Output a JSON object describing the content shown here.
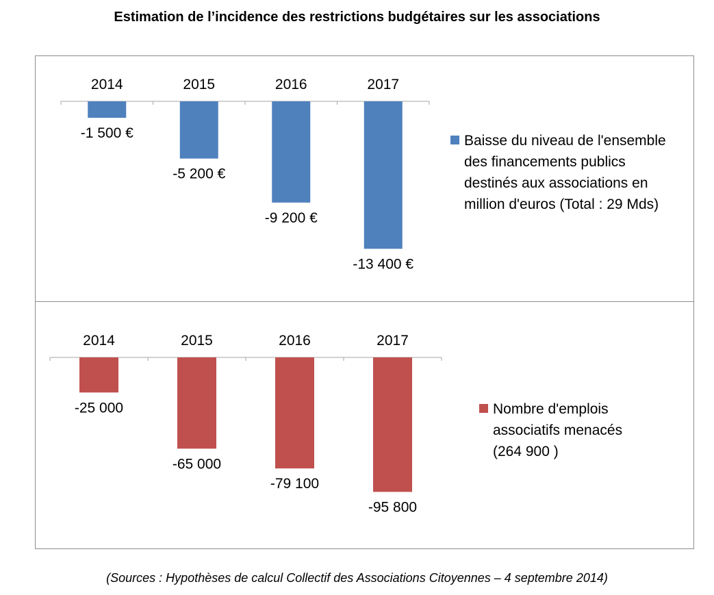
{
  "title": "Estimation de l’incidence  des restrictions budgétaires sur les associations",
  "source": "(Sources : Hypothèses de calcul Collectif des Associations Citoyennes – 4 septembre 2014)",
  "colors": {
    "series1": "#4f81bd",
    "series2": "#c0504d",
    "axis": "#a6a6a6"
  },
  "chart_data": [
    {
      "type": "bar",
      "categories": [
        "2014",
        "2015",
        "2016",
        "2017"
      ],
      "series": [
        {
          "name": "Baisse du niveau de l'ensemble des financements publics destinés aux associations en million d'euros (Total : 29 Mds)",
          "values": [
            -1500,
            -5200,
            -9200,
            -13400
          ],
          "data_labels": [
            "-1 500 €",
            "-5 200 €",
            "-9 200 €",
            "-13 400 €"
          ]
        }
      ],
      "legend_lines": [
        "Baisse du niveau de l'ensemble",
        "des financements publics",
        "destinés aux associations en",
        "million d'euros (Total : 29 Mds)"
      ],
      "legend_position": "right",
      "ylim": [
        -14000,
        0
      ],
      "grid": false
    },
    {
      "type": "bar",
      "categories": [
        "2014",
        "2015",
        "2016",
        "2017"
      ],
      "series": [
        {
          "name": "Nombre d'emplois associatifs menacés (264 900 )",
          "values": [
            -25000,
            -65000,
            -79100,
            -95800
          ],
          "data_labels": [
            "-25 000",
            "-65 000",
            "-79 100",
            "-95 800"
          ]
        }
      ],
      "legend_lines": [
        "Nombre d'emplois",
        "associatifs menacés",
        "(264 900 )"
      ],
      "legend_position": "right",
      "ylim": [
        -100000,
        0
      ],
      "grid": false
    }
  ]
}
